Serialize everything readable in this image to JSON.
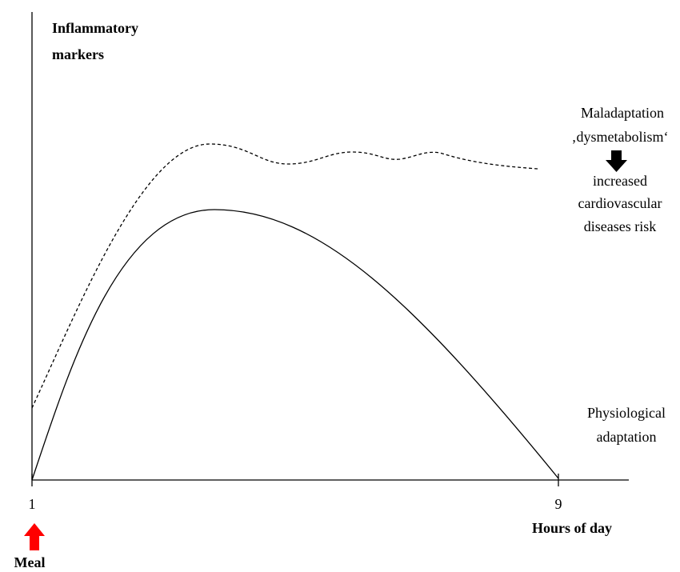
{
  "y_axis_label": [
    "Inflammatory",
    "markers"
  ],
  "x_axis_label": "Hours of day",
  "x_ticks": [
    "1",
    "9"
  ],
  "event_label": "Meal",
  "upper_curve_label": [
    "Maladaptation",
    "‚dysmetabolism‘",
    "increased",
    "cardiovascular",
    "diseases risk"
  ],
  "lower_curve_label": [
    "Physiological",
    "adaptation"
  ]
}
